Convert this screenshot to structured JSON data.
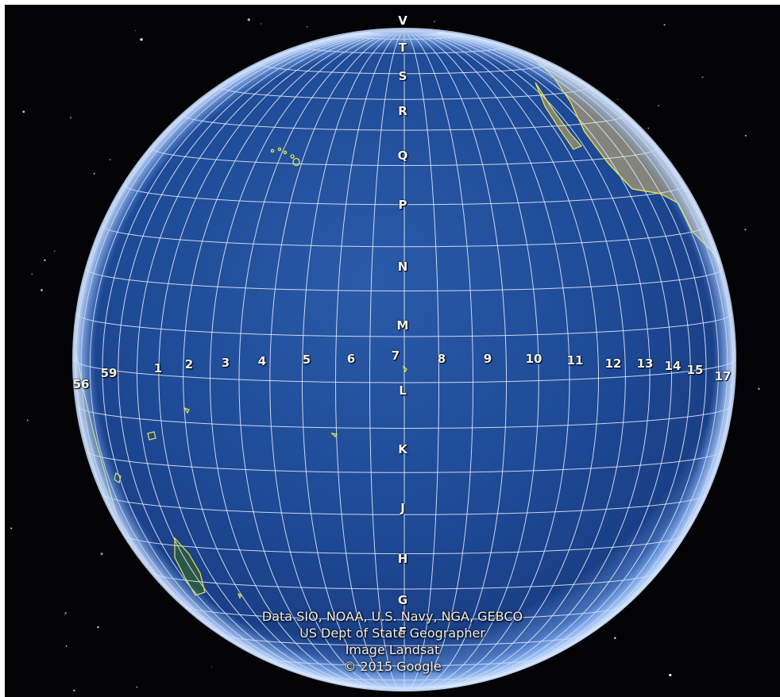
{
  "map": {
    "title": "",
    "zone_labels": [
      "56",
      "59",
      "1",
      "2",
      "3",
      "4",
      "5",
      "6",
      "7",
      "8",
      "9",
      "10",
      "11",
      "12",
      "13",
      "14",
      "15",
      "17"
    ],
    "band_labels": [
      "V",
      "T",
      "S",
      "R",
      "Q",
      "P",
      "N",
      "M",
      "L",
      "K",
      "J",
      "H",
      "G",
      "F"
    ],
    "attribution": {
      "line1": "Data SIO, NOAA, U.S. Navy, NGA, GEBCO",
      "line2": "US Dept of State Geographer",
      "line3": "Image Landsat",
      "line4": "© 2015 Google"
    },
    "colors": {
      "space": "#030306",
      "ocean": "#1f4b9a",
      "grid": "#e8eefc",
      "coast": "#e6e64a",
      "land": "#8b8a78"
    }
  }
}
